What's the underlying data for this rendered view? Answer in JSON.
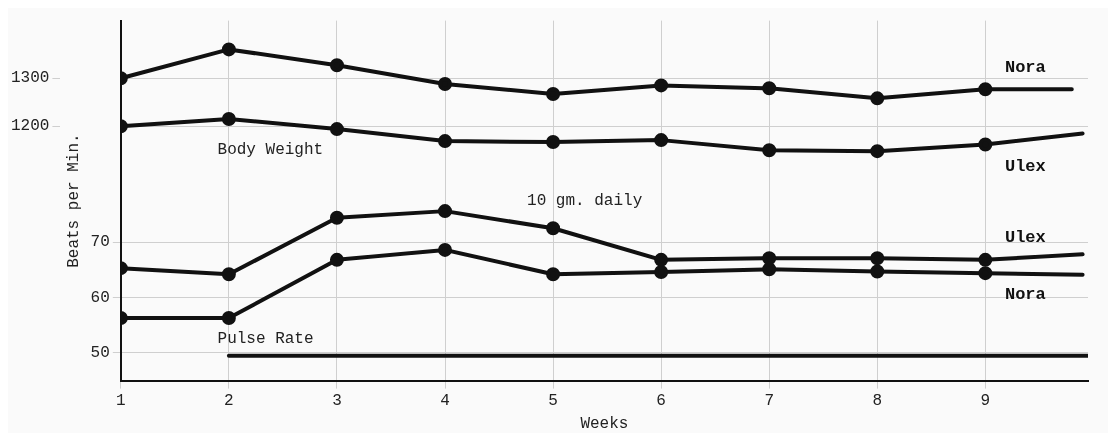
{
  "chart_data": {
    "type": "line",
    "xlabel": "Weeks",
    "ylabel": "Beats per Min.",
    "xlim": [
      1,
      9.95
    ],
    "xticks": [
      1,
      2,
      3,
      4,
      5,
      6,
      7,
      8,
      9
    ],
    "ylim": [
      45,
      110
    ],
    "yticks": [
      50,
      60,
      70
    ],
    "y2lim": [
      670,
      1420
    ],
    "y2ticks": [
      1200,
      1300
    ],
    "grid": true,
    "marker": "circle",
    "legend": false,
    "annotations": [
      "Body Weight",
      "Pulse Rate",
      "10 gm. daily"
    ],
    "series": [
      {
        "name": "Nora",
        "color": "#111111",
        "axis": "y2",
        "x": [
          1,
          2,
          3,
          4,
          5,
          6,
          7,
          8,
          9,
          9.8
        ],
        "values": [
          1300,
          1360,
          1327,
          1288,
          1267,
          1285,
          1279,
          1258,
          1277,
          1277
        ]
      },
      {
        "name": "Ulex",
        "color": "#111111",
        "axis": "y2",
        "x": [
          1,
          2,
          3,
          4,
          5,
          6,
          7,
          8,
          9,
          9.9
        ],
        "values": [
          1200,
          1215,
          1194,
          1169,
          1167,
          1171,
          1150,
          1148,
          1162,
          1185
        ]
      },
      {
        "name": "Ulex",
        "color": "#111111",
        "axis": "y",
        "x": [
          1,
          2,
          3,
          4,
          5,
          6,
          7,
          8,
          9,
          9.9
        ],
        "values": [
          65.3,
          64.2,
          74.4,
          75.6,
          72.5,
          66.8,
          67.1,
          67.1,
          66.8,
          67.8
        ]
      },
      {
        "name": "Nora",
        "color": "#111111",
        "axis": "y",
        "x": [
          1,
          2,
          3,
          4,
          5,
          6,
          7,
          8,
          9,
          9.9
        ],
        "values": [
          56.3,
          56.3,
          66.8,
          68.6,
          64.2,
          64.6,
          65.1,
          64.7,
          64.4,
          64.1
        ]
      },
      {
        "color": "#111111",
        "axis": "y",
        "marker": "none",
        "x": [
          2,
          9.95
        ],
        "values": [
          49.5,
          49.5
        ]
      }
    ]
  }
}
